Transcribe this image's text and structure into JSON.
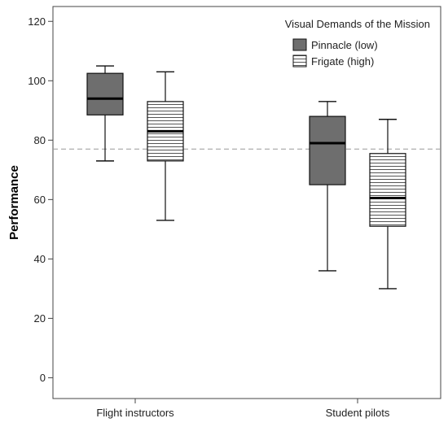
{
  "chart_data": {
    "type": "box",
    "title": "",
    "xlabel": "",
    "ylabel": "Performance",
    "ylim": [
      -7,
      125
    ],
    "yticks": [
      0,
      20,
      40,
      60,
      80,
      100,
      120
    ],
    "grid": false,
    "reference_line": 77,
    "categories": [
      "Flight instructors",
      "Student pilots"
    ],
    "legend": {
      "title": "Visual Demands of the Mission",
      "position": "top-right"
    },
    "series": [
      {
        "name": "Pinnacle (low)",
        "fill": "#6e6e6e",
        "pattern": "solid",
        "boxes": [
          {
            "min": 73,
            "q1": 88.5,
            "median": 94,
            "q3": 102.5,
            "max": 105
          },
          {
            "min": 36,
            "q1": 65,
            "median": 79,
            "q3": 88,
            "max": 93
          }
        ]
      },
      {
        "name": "Frigate (high)",
        "fill": "#ffffff",
        "pattern": "horizontal-lines",
        "boxes": [
          {
            "min": 53,
            "q1": 73,
            "median": 83,
            "q3": 93,
            "max": 103
          },
          {
            "min": 30,
            "q1": 51,
            "median": 60.5,
            "q3": 75.5,
            "max": 87
          }
        ]
      }
    ]
  }
}
